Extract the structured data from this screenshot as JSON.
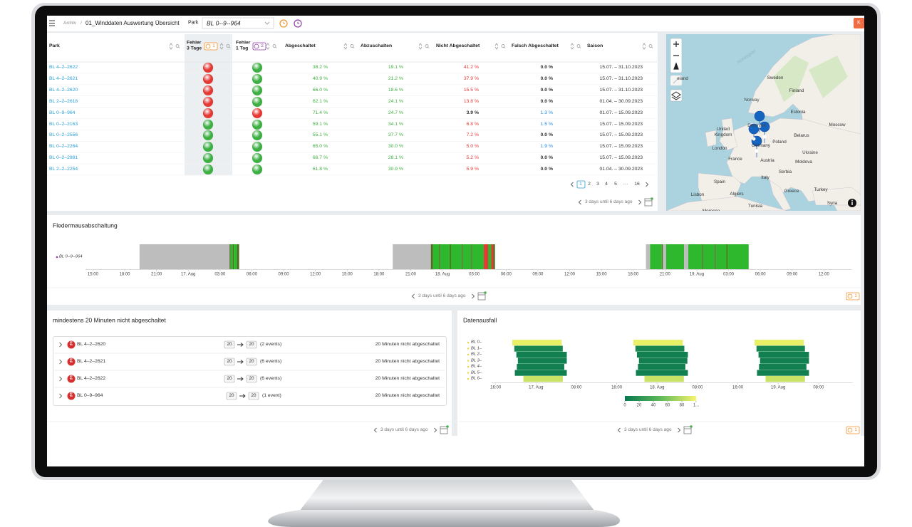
{
  "toolbar": {
    "breadcrumb": "Archiv",
    "separator": "/",
    "title": "01_Winddaten Auswertung Übersicht",
    "park_label": "Park",
    "park_value": "BL 0--9--964",
    "avatar": "K"
  },
  "table": {
    "columns": [
      "Park",
      "Fehler 3 Tage",
      "Fehler 1 Tag",
      "Abgeschaltet",
      "Abzuschalten",
      "Nicht Abgeschaltet",
      "Falsch Abgeschaltet",
      "Saison"
    ],
    "badges": [
      "1",
      "2"
    ],
    "rows": [
      {
        "park": "BL 4–2–2622",
        "lights": [
          "#e53935",
          "#3cb043"
        ],
        "values": [
          "38.2 %",
          "19.1 %",
          "41.2 %",
          "0.0 %"
        ],
        "colors": [
          "#3cae3c",
          "#3cae3c",
          "#e53935",
          "#333333"
        ],
        "saison": "15.07. – 31.10.2023"
      },
      {
        "park": "BL 4–2–2621",
        "lights": [
          "#e53935",
          "#3cb043"
        ],
        "values": [
          "40.9 %",
          "21.2 %",
          "37.9 %",
          "0.0 %"
        ],
        "colors": [
          "#3cae3c",
          "#3cae3c",
          "#e53935",
          "#333333"
        ],
        "saison": "15.07. – 31.10.2023"
      },
      {
        "park": "BL 4–2–2620",
        "lights": [
          "#e53935",
          "#3cb043"
        ],
        "values": [
          "66.0 %",
          "18.6 %",
          "15.5 %",
          "0.0 %"
        ],
        "colors": [
          "#3cae3c",
          "#3cae3c",
          "#e53935",
          "#333333"
        ],
        "saison": "15.07. – 31.10.2023"
      },
      {
        "park": "BL 2–2–2618",
        "lights": [
          "#e53935",
          "#3cb043"
        ],
        "values": [
          "62.1 %",
          "24.1 %",
          "13.8 %",
          "0.0 %"
        ],
        "colors": [
          "#3cae3c",
          "#3cae3c",
          "#e53935",
          "#333333"
        ],
        "saison": "01.04. – 30.09.2023"
      },
      {
        "park": "BL 0–9–964",
        "lights": [
          "#e53935",
          "#e53935"
        ],
        "values": [
          "71.4 %",
          "24.7 %",
          "3.9 %",
          "1.3 %"
        ],
        "colors": [
          "#3cae3c",
          "#3cae3c",
          "#333333",
          "#1e88e5"
        ],
        "saison": "01.07. – 15.09.2023"
      },
      {
        "park": "BL 0–2–2163",
        "lights": [
          "#3cb043",
          "#3cb043"
        ],
        "values": [
          "59.1 %",
          "34.1 %",
          "6.8 %",
          "1.5 %"
        ],
        "colors": [
          "#3cae3c",
          "#3cae3c",
          "#e53935",
          "#1e88e5"
        ],
        "saison": "15.07. – 15.09.2023"
      },
      {
        "park": "BL 0–2–2556",
        "lights": [
          "#3cb043",
          "#3cb043"
        ],
        "values": [
          "55.1 %",
          "37.7 %",
          "7.2 %",
          "0.0 %"
        ],
        "colors": [
          "#3cae3c",
          "#3cae3c",
          "#e53935",
          "#333333"
        ],
        "saison": "15.07. – 15.09.2023"
      },
      {
        "park": "BL 0–2–2264",
        "lights": [
          "#3cb043",
          "#3cb043"
        ],
        "values": [
          "65.0 %",
          "30.0 %",
          "5.0 %",
          "1.9 %"
        ],
        "colors": [
          "#3cae3c",
          "#3cae3c",
          "#e53935",
          "#1e88e5"
        ],
        "saison": "15.07. – 15.09.2023"
      },
      {
        "park": "BL 0–2–2981",
        "lights": [
          "#3cb043",
          "#3cb043"
        ],
        "values": [
          "66.7 %",
          "28.1 %",
          "5.2 %",
          "0.0 %"
        ],
        "colors": [
          "#3cae3c",
          "#3cae3c",
          "#e53935",
          "#333333"
        ],
        "saison": "15.07. – 15.09.2023"
      },
      {
        "park": "BL 2–2–2254",
        "lights": [
          "#3cb043",
          "#3cb043"
        ],
        "values": [
          "61.8 %",
          "30.9 %",
          "5.9 %",
          "0.0 %"
        ],
        "colors": [
          "#3cae3c",
          "#3cae3c",
          "#e53935",
          "#333333"
        ],
        "saison": "01.04. – 30.09.2023"
      }
    ],
    "pages": [
      "1",
      "2",
      "3",
      "4",
      "5",
      "···",
      "16"
    ],
    "footer": "3 days until 6 days ago"
  },
  "map": {
    "labels": [
      "Norwegian",
      "Sweden",
      "Finland",
      "eland",
      "Norway",
      "Estonia",
      "Denmark",
      "Moscow",
      "United Kingdom",
      "Belarus",
      "London",
      "Germany",
      "Poland",
      "Ukraine",
      "France",
      "Austria",
      "Moldova",
      "Serbia",
      "Italy",
      "Spain",
      "Greece",
      "Turkey",
      "Lisbon",
      "Algiers",
      "Tunisia",
      "Syria",
      "Morocco"
    ]
  },
  "fledermaus": {
    "title": "Fledermausabschaltung",
    "legend": "BL 0--9--964",
    "legend_color": "#8e3fa8",
    "xlim": [
      14.3,
      86.6
    ],
    "xticks": [
      {
        "value": 15,
        "label": "15:00"
      },
      {
        "value": 18,
        "label": "18:00"
      },
      {
        "value": 21,
        "label": "21:00"
      },
      {
        "value": 24,
        "label": "17. Aug"
      },
      {
        "value": 27,
        "label": "03:00"
      },
      {
        "value": 30,
        "label": "06:00"
      },
      {
        "value": 33,
        "label": "09:00"
      },
      {
        "value": 36,
        "label": "12:00"
      },
      {
        "value": 39,
        "label": "15:00"
      },
      {
        "value": 42,
        "label": "18:00"
      },
      {
        "value": 45,
        "label": "21:00"
      },
      {
        "value": 48,
        "label": "18. Aug"
      },
      {
        "value": 51,
        "label": "03:00"
      },
      {
        "value": 54,
        "label": "06:00"
      },
      {
        "value": 57,
        "label": "09:00"
      },
      {
        "value": 60,
        "label": "12:00"
      },
      {
        "value": 63,
        "label": "15:00"
      },
      {
        "value": 66,
        "label": "18:00"
      },
      {
        "value": 69,
        "label": "21:00"
      },
      {
        "value": 72,
        "label": "19. Aug"
      },
      {
        "value": 75,
        "label": "03:00"
      },
      {
        "value": 78,
        "label": "06:00"
      },
      {
        "value": 81,
        "label": "09:00"
      },
      {
        "value": 84,
        "label": "12:00"
      }
    ],
    "segments": [
      {
        "start": 19.4,
        "end": 27.9,
        "color": "#bdbdbd"
      },
      {
        "start": 27.9,
        "end": 28.0,
        "color": "#4e6b1f"
      },
      {
        "start": 28.0,
        "end": 28.2,
        "color": "#2db82d"
      },
      {
        "start": 28.2,
        "end": 28.3,
        "color": "#4e6b1f"
      },
      {
        "start": 28.3,
        "end": 28.6,
        "color": "#2db82d"
      },
      {
        "start": 28.6,
        "end": 28.8,
        "color": "#4e6b1f"
      },
      {
        "start": 43.3,
        "end": 46.9,
        "color": "#bdbdbd"
      },
      {
        "start": 46.9,
        "end": 47.1,
        "color": "#4e6b1f"
      },
      {
        "start": 47.1,
        "end": 47.7,
        "color": "#2db82d"
      },
      {
        "start": 47.7,
        "end": 47.8,
        "color": "#4e6b1f"
      },
      {
        "start": 47.8,
        "end": 48.7,
        "color": "#2db82d"
      },
      {
        "start": 48.7,
        "end": 48.8,
        "color": "#4e6b1f"
      },
      {
        "start": 48.8,
        "end": 49.8,
        "color": "#2db82d"
      },
      {
        "start": 49.8,
        "end": 49.9,
        "color": "#4e6b1f"
      },
      {
        "start": 49.9,
        "end": 50.7,
        "color": "#2db82d"
      },
      {
        "start": 50.7,
        "end": 50.8,
        "color": "#4e6b1f"
      },
      {
        "start": 50.8,
        "end": 51.9,
        "color": "#2db82d"
      },
      {
        "start": 51.9,
        "end": 52.3,
        "color": "#e53935"
      },
      {
        "start": 52.3,
        "end": 52.6,
        "color": "#2db82d"
      },
      {
        "start": 52.6,
        "end": 52.8,
        "color": "#e53935"
      },
      {
        "start": 52.8,
        "end": 52.95,
        "color": "#4e6b1f"
      },
      {
        "start": 67.2,
        "end": 67.6,
        "color": "#bdbdbd"
      },
      {
        "start": 67.6,
        "end": 68.7,
        "color": "#2db82d"
      },
      {
        "start": 68.7,
        "end": 68.8,
        "color": "#4e6b1f"
      },
      {
        "start": 68.8,
        "end": 69.1,
        "color": "#bdbdbd"
      },
      {
        "start": 69.1,
        "end": 70.8,
        "color": "#2db82d"
      },
      {
        "start": 70.8,
        "end": 71.2,
        "color": "#bdbdbd"
      },
      {
        "start": 71.2,
        "end": 72.5,
        "color": "#2db82d"
      },
      {
        "start": 72.5,
        "end": 72.6,
        "color": "#4e6b1f"
      },
      {
        "start": 72.6,
        "end": 73.7,
        "color": "#2db82d"
      },
      {
        "start": 73.7,
        "end": 73.8,
        "color": "#4e6b1f"
      },
      {
        "start": 73.8,
        "end": 74.8,
        "color": "#2db82d"
      },
      {
        "start": 74.8,
        "end": 74.9,
        "color": "#4e6b1f"
      },
      {
        "start": 74.9,
        "end": 76.9,
        "color": "#2db82d"
      }
    ],
    "footer": "3 days until 6 days ago",
    "badge": "1"
  },
  "events": {
    "title": "mindestens 20 Minuten nicht abgeschaltet",
    "symbol": "Σ",
    "rows": [
      {
        "name": "BL 4–2–2620",
        "from": "20",
        "to": "20",
        "count": "(2 events)",
        "status": "20 Minuten nicht abgeschaltet"
      },
      {
        "name": "BL 4–2–2621",
        "from": "20",
        "to": "20",
        "count": "(6 events)",
        "status": "20 Minuten nicht abgeschaltet"
      },
      {
        "name": "BL 4–2–2622",
        "from": "20",
        "to": "20",
        "count": "(6 events)",
        "status": "20 Minuten nicht abgeschaltet"
      },
      {
        "name": "BL 0–9–964",
        "from": "20",
        "to": "20",
        "count": "(1 event)",
        "status": "20 Minuten nicht abgeschaltet"
      }
    ],
    "footer": "3 days until 6 days ago"
  },
  "datenausfall": {
    "title": "Datenausfall",
    "legend_color": "#f2d335",
    "xlim": [
      15.2,
      86.8
    ],
    "xticks": [
      {
        "value": 16,
        "label": "16:00"
      },
      {
        "value": 24,
        "label": "17. Aug"
      },
      {
        "value": 32,
        "label": "08:00"
      },
      {
        "value": 40,
        "label": "16:00"
      },
      {
        "value": 48,
        "label": "18. Aug"
      },
      {
        "value": 56,
        "label": "08:00"
      },
      {
        "value": 64,
        "label": "16:00"
      },
      {
        "value": 72,
        "label": "19. Aug"
      },
      {
        "value": 80,
        "label": "08:00"
      }
    ],
    "rows": [
      {
        "label": "BL 0–",
        "cells": [
          [
            19.3,
            29.1,
            95
          ],
          [
            43.3,
            53.1,
            95
          ],
          [
            67.3,
            77.1,
            95
          ]
        ]
      },
      {
        "label": "BL 1–",
        "cells": [
          [
            19.7,
            29.3,
            10
          ],
          [
            43.7,
            53.4,
            10
          ],
          [
            67.7,
            77.3,
            10
          ]
        ]
      },
      {
        "label": "BL 2–",
        "cells": [
          [
            20.1,
            30.1,
            5
          ],
          [
            44.0,
            54.1,
            5
          ],
          [
            68.1,
            78.1,
            5
          ]
        ]
      },
      {
        "label": "BL 3–",
        "cells": [
          [
            20.4,
            30.1,
            5
          ],
          [
            44.4,
            54.0,
            5
          ],
          [
            68.4,
            78.1,
            5
          ]
        ]
      },
      {
        "label": "BL 4–",
        "cells": [
          [
            20.2,
            29.6,
            5
          ],
          [
            44.2,
            53.6,
            5
          ],
          [
            68.2,
            77.6,
            5
          ]
        ]
      },
      {
        "label": "BL 5–",
        "cells": [
          [
            19.8,
            30.1,
            5
          ],
          [
            43.8,
            54.1,
            5
          ],
          [
            67.8,
            78.1,
            5
          ]
        ]
      },
      {
        "label": "BL 6–",
        "cells": [
          [
            21.5,
            29.3,
            85
          ],
          [
            45.5,
            53.3,
            85
          ],
          [
            69.5,
            77.3,
            85
          ]
        ]
      }
    ],
    "scale": {
      "xlim": [
        0,
        100
      ],
      "ticks": [
        0,
        20,
        40,
        60,
        80,
        {
          "value": 100,
          "label": "1..."
        }
      ],
      "colors": [
        "#08794f",
        "#5fb85a",
        "#f7f56b"
      ]
    },
    "footer": "3 days until 6 days ago",
    "badge": "1"
  }
}
